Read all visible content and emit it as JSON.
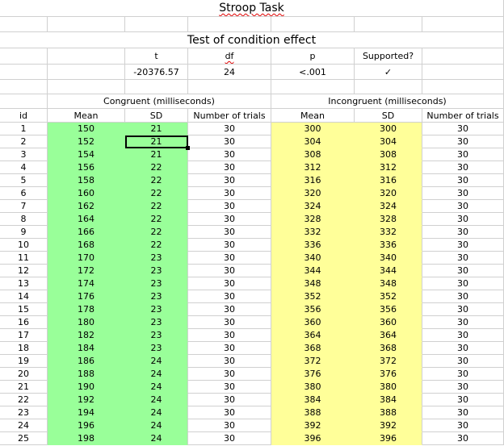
{
  "title": "Stroop Task",
  "subtitle": "Test of condition effect",
  "stats": {
    "headers": [
      "t",
      "df",
      "p",
      "Supported?"
    ],
    "values": [
      "-20376.57",
      "24",
      "<.001",
      "✓"
    ]
  },
  "groups": {
    "congruent": "Congruent (milliseconds)",
    "incongruent": "Incongruent (milliseconds)"
  },
  "columns": [
    "id",
    "Mean",
    "SD",
    "Number of trials",
    "Mean",
    "SD",
    "Number of trials"
  ],
  "rows": [
    [
      "1",
      "150",
      "21",
      "30",
      "300",
      "300",
      "30"
    ],
    [
      "2",
      "152",
      "21",
      "30",
      "304",
      "304",
      "30"
    ],
    [
      "3",
      "154",
      "21",
      "30",
      "308",
      "308",
      "30"
    ],
    [
      "4",
      "156",
      "22",
      "30",
      "312",
      "312",
      "30"
    ],
    [
      "5",
      "158",
      "22",
      "30",
      "316",
      "316",
      "30"
    ],
    [
      "6",
      "160",
      "22",
      "30",
      "320",
      "320",
      "30"
    ],
    [
      "7",
      "162",
      "22",
      "30",
      "324",
      "324",
      "30"
    ],
    [
      "8",
      "164",
      "22",
      "30",
      "328",
      "328",
      "30"
    ],
    [
      "9",
      "166",
      "22",
      "30",
      "332",
      "332",
      "30"
    ],
    [
      "10",
      "168",
      "22",
      "30",
      "336",
      "336",
      "30"
    ],
    [
      "11",
      "170",
      "23",
      "30",
      "340",
      "340",
      "30"
    ],
    [
      "12",
      "172",
      "23",
      "30",
      "344",
      "344",
      "30"
    ],
    [
      "13",
      "174",
      "23",
      "30",
      "348",
      "348",
      "30"
    ],
    [
      "14",
      "176",
      "23",
      "30",
      "352",
      "352",
      "30"
    ],
    [
      "15",
      "178",
      "23",
      "30",
      "356",
      "356",
      "30"
    ],
    [
      "16",
      "180",
      "23",
      "30",
      "360",
      "360",
      "30"
    ],
    [
      "17",
      "182",
      "23",
      "30",
      "364",
      "364",
      "30"
    ],
    [
      "18",
      "184",
      "23",
      "30",
      "368",
      "368",
      "30"
    ],
    [
      "19",
      "186",
      "24",
      "30",
      "372",
      "372",
      "30"
    ],
    [
      "20",
      "188",
      "24",
      "30",
      "376",
      "376",
      "30"
    ],
    [
      "21",
      "190",
      "24",
      "30",
      "380",
      "380",
      "30"
    ],
    [
      "22",
      "192",
      "24",
      "30",
      "384",
      "384",
      "30"
    ],
    [
      "23",
      "194",
      "24",
      "30",
      "388",
      "388",
      "30"
    ],
    [
      "24",
      "196",
      "24",
      "30",
      "392",
      "392",
      "30"
    ],
    [
      "25",
      "198",
      "24",
      "30",
      "396",
      "396",
      "30"
    ]
  ],
  "colors": {
    "congruent_fill": "#99ff99",
    "incongruent_fill": "#ffff99",
    "gridline": "#d0d0d0"
  },
  "selected_cell": {
    "row": "2",
    "column": "SD"
  }
}
